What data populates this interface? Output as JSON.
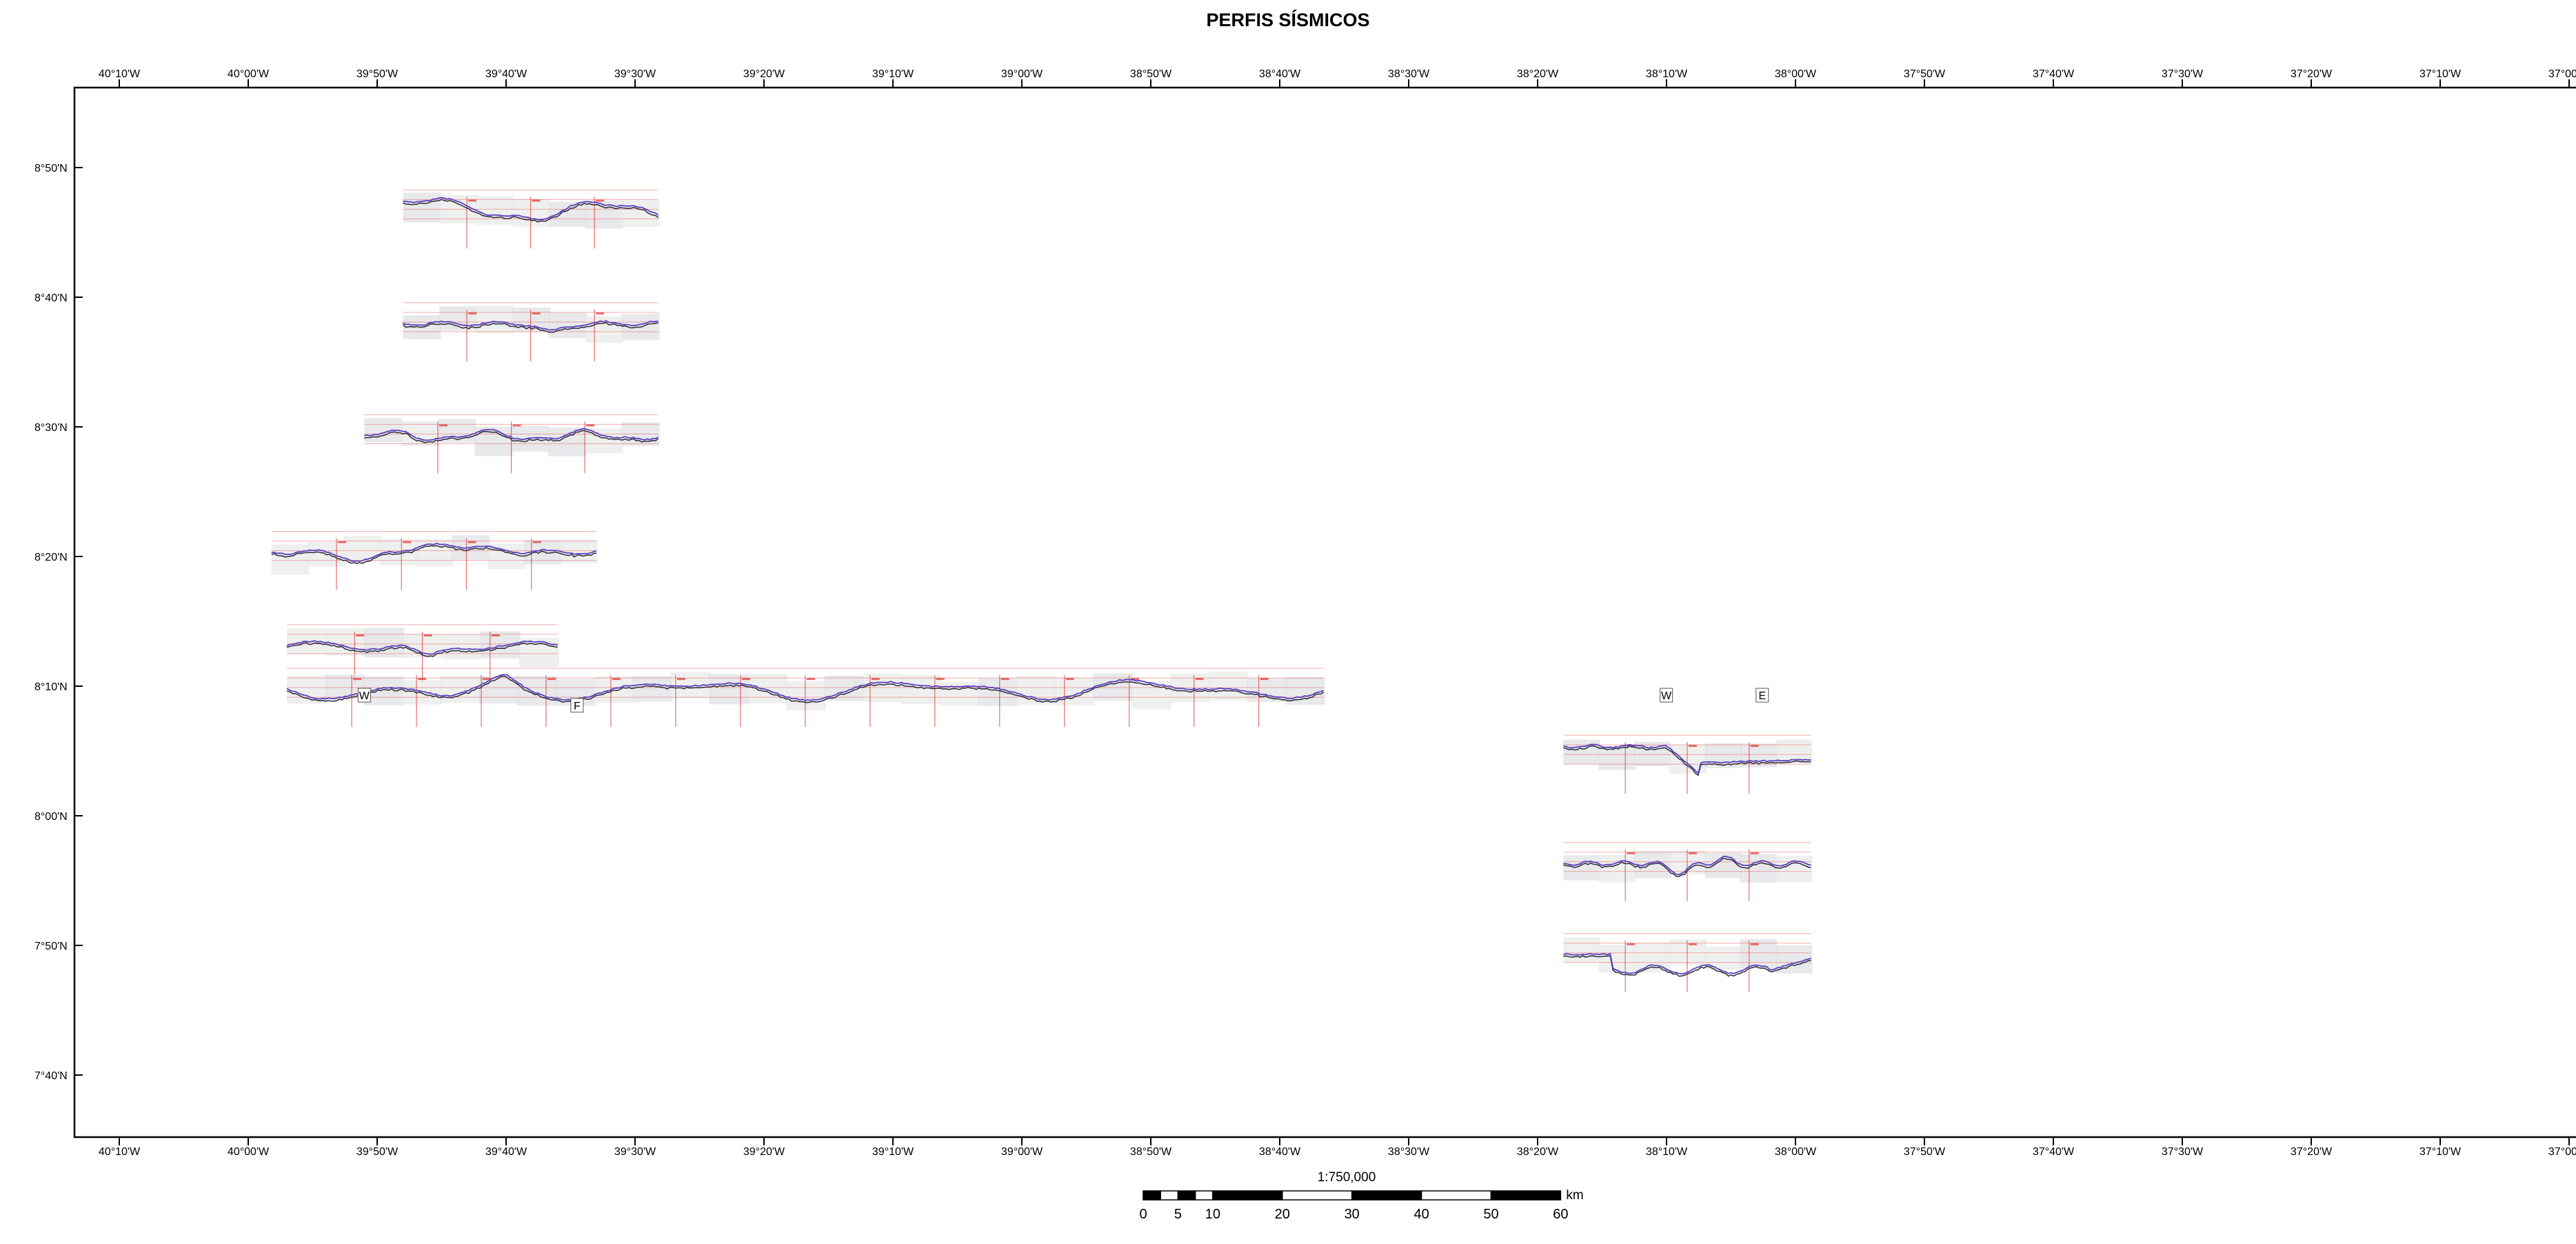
{
  "title": "PERFIS SÍSMICOS",
  "longitude_labels": [
    "40°10'W",
    "40°00'W",
    "39°50'W",
    "39°40'W",
    "39°30'W",
    "39°20'W",
    "39°10'W",
    "39°00'W",
    "38°50'W",
    "38°40'W",
    "38°30'W",
    "38°20'W",
    "38°10'W",
    "38°00'W",
    "37°50'W",
    "37°40'W",
    "37°30'W",
    "37°20'W",
    "37°10'W",
    "37°00'W"
  ],
  "latitude_labels": [
    "8°50'N",
    "8°40'N",
    "8°30'N",
    "8°20'N",
    "8°10'N",
    "8°00'N",
    "7°50'N",
    "7°40'N"
  ],
  "scale": {
    "ratio": "1:750,000",
    "unit": "km",
    "labels": [
      "0",
      "5",
      "10",
      "20",
      "30",
      "40",
      "50",
      "60"
    ]
  },
  "profiles": [
    {
      "id": "p1",
      "lat": 8.778,
      "lon_w": 39.8,
      "lon_e": 39.47,
      "relief": "hilly"
    },
    {
      "id": "p2",
      "lat": 8.633,
      "lon_w": 39.8,
      "lon_e": 39.47,
      "relief": "valley"
    },
    {
      "id": "p3",
      "lat": 8.489,
      "lon_w": 39.85,
      "lon_e": 39.47,
      "relief": "wavy"
    },
    {
      "id": "p4",
      "lat": 8.339,
      "lon_w": 39.97,
      "lon_e": 39.55,
      "relief": "basin"
    },
    {
      "id": "p5",
      "lat": 8.219,
      "lon_w": 39.95,
      "lon_e": 39.6,
      "relief": "trough"
    },
    {
      "id": "p6",
      "lat": 8.163,
      "lon_w": 39.95,
      "lon_e": 38.61,
      "relief": "long"
    },
    {
      "id": "p7",
      "lat": 8.077,
      "lon_w": 38.3,
      "lon_e": 37.98,
      "relief": "step"
    },
    {
      "id": "p8",
      "lat": 7.939,
      "lon_w": 38.3,
      "lon_e": 37.98,
      "relief": "dip"
    },
    {
      "id": "p9",
      "lat": 7.822,
      "lon_w": 38.3,
      "lon_e": 37.98,
      "relief": "rise"
    }
  ],
  "profile_markers": [
    {
      "id": "w1",
      "text": "W",
      "lat": 8.155,
      "lon": 39.85
    },
    {
      "id": "w2",
      "text": "W",
      "lat": 8.155,
      "lon": 38.167
    },
    {
      "id": "e1",
      "text": "E",
      "lat": 8.155,
      "lon": 38.043
    },
    {
      "id": "f1",
      "text": "F",
      "lat": 8.142,
      "lon": 39.575
    }
  ]
}
